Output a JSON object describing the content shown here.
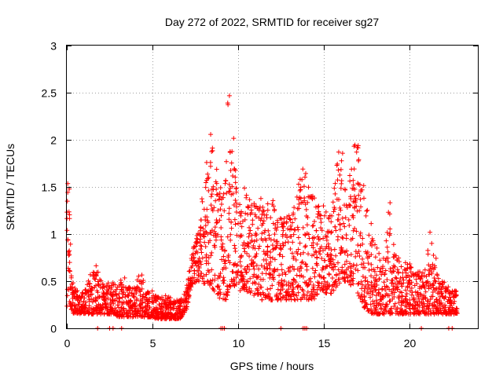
{
  "chart_data": {
    "type": "scatter",
    "title": "Day 272 of 2022, SRMTID for receiver sg27",
    "xlabel": "GPS time / hours",
    "ylabel": "SRMTID / TECUs",
    "xlim": [
      0,
      24
    ],
    "ylim": [
      0,
      3
    ],
    "xticks": [
      0,
      5,
      10,
      15,
      20
    ],
    "xtick_labels": [
      "0",
      "5",
      "10",
      "15",
      "20"
    ],
    "yticks": [
      0,
      0.5,
      1,
      1.5,
      2,
      2.5,
      3
    ],
    "ytick_labels": [
      "0",
      "0.5",
      "1",
      "1.5",
      "2",
      "2.5",
      "3"
    ],
    "grid": true,
    "marker": "+",
    "series": [
      {
        "name": "SRMTID",
        "color": "#ff0000",
        "x": [
          0.0,
          0.05,
          0.1,
          0.15,
          0.2,
          0.25,
          0.3,
          0.4,
          0.5,
          0.6,
          0.7,
          0.8,
          0.9,
          1.0,
          1.2,
          1.4,
          1.6,
          1.8,
          1.9,
          2.0,
          2.2,
          2.4,
          2.6,
          2.8,
          3.0,
          3.2,
          3.4,
          3.6,
          3.8,
          4.0,
          4.2,
          4.4,
          4.6,
          4.8,
          5.0,
          5.2,
          5.4,
          5.6,
          5.8,
          6.0,
          6.2,
          6.4,
          6.6,
          6.8,
          7.0,
          7.2,
          7.4,
          7.6,
          7.8,
          8.0,
          8.2,
          8.4,
          8.6,
          8.8,
          9.0,
          9.2,
          9.3,
          9.4,
          9.5,
          9.6,
          9.8,
          10.0,
          10.2,
          10.4,
          10.6,
          10.8,
          11.0,
          11.2,
          11.4,
          11.6,
          11.8,
          12.0,
          12.2,
          12.4,
          12.6,
          12.8,
          13.0,
          13.2,
          13.4,
          13.6,
          13.8,
          14.0,
          14.2,
          14.4,
          14.6,
          14.8,
          15.0,
          15.2,
          15.4,
          15.6,
          15.8,
          16.0,
          16.2,
          16.4,
          16.6,
          16.8,
          17.0,
          17.2,
          17.4,
          17.6,
          17.8,
          18.0,
          18.2,
          18.4,
          18.6,
          18.8,
          19.0,
          19.2,
          19.4,
          19.6,
          19.8,
          20.0,
          20.2,
          20.4,
          20.6,
          20.8,
          21.0,
          21.2,
          21.4,
          21.6,
          21.8,
          22.0,
          22.2,
          22.4,
          22.6,
          22.8
        ],
        "y_low": [
          0.2,
          0.3,
          0.35,
          0.3,
          0.25,
          0.2,
          0.2,
          0.15,
          0.15,
          0.15,
          0.15,
          0.15,
          0.15,
          0.15,
          0.15,
          0.15,
          0.15,
          0.15,
          0.15,
          0.15,
          0.15,
          0.15,
          0.15,
          0.15,
          0.12,
          0.12,
          0.12,
          0.12,
          0.12,
          0.12,
          0.12,
          0.12,
          0.12,
          0.12,
          0.12,
          0.1,
          0.1,
          0.1,
          0.1,
          0.1,
          0.1,
          0.1,
          0.1,
          0.15,
          0.2,
          0.4,
          0.45,
          0.5,
          0.5,
          0.45,
          0.45,
          0.45,
          0.4,
          0.35,
          0.3,
          0.3,
          0.3,
          0.35,
          0.4,
          0.45,
          0.45,
          0.4,
          0.4,
          0.4,
          0.35,
          0.35,
          0.35,
          0.35,
          0.3,
          0.3,
          0.3,
          0.3,
          0.3,
          0.3,
          0.3,
          0.3,
          0.3,
          0.3,
          0.3,
          0.3,
          0.3,
          0.3,
          0.3,
          0.3,
          0.35,
          0.4,
          0.4,
          0.35,
          0.35,
          0.4,
          0.45,
          0.5,
          0.5,
          0.5,
          0.45,
          0.45,
          0.35,
          0.3,
          0.2,
          0.15,
          0.15,
          0.15,
          0.15,
          0.15,
          0.15,
          0.15,
          0.15,
          0.15,
          0.15,
          0.15,
          0.15,
          0.15,
          0.15,
          0.15,
          0.15,
          0.15,
          0.15,
          0.15,
          0.15,
          0.15,
          0.15,
          0.15,
          0.15,
          0.15,
          0.15,
          0.15
        ],
        "y_high": [
          1.3,
          1.55,
          1.5,
          1.3,
          0.9,
          0.6,
          0.5,
          0.45,
          0.4,
          0.4,
          0.35,
          0.35,
          0.4,
          0.4,
          0.5,
          0.6,
          0.72,
          0.6,
          0.55,
          0.5,
          0.45,
          0.5,
          0.5,
          0.5,
          0.5,
          0.55,
          0.45,
          0.45,
          0.45,
          0.45,
          0.6,
          0.55,
          0.4,
          0.4,
          0.35,
          0.35,
          0.35,
          0.35,
          0.35,
          0.35,
          0.3,
          0.3,
          0.3,
          0.35,
          0.45,
          0.7,
          0.9,
          1.1,
          1.2,
          1.6,
          1.9,
          2.15,
          1.7,
          1.5,
          1.4,
          1.6,
          2.4,
          2.52,
          1.9,
          2.05,
          1.7,
          1.3,
          1.5,
          1.45,
          1.45,
          1.35,
          1.35,
          1.4,
          1.3,
          1.3,
          1.4,
          1.4,
          1.2,
          1.2,
          1.2,
          1.2,
          1.2,
          1.3,
          1.4,
          1.7,
          1.75,
          1.5,
          1.45,
          1.4,
          1.3,
          1.3,
          1.3,
          1.2,
          1.2,
          1.5,
          1.9,
          2.0,
          1.5,
          1.4,
          1.8,
          2.1,
          2.05,
          1.6,
          1.3,
          1.2,
          1.0,
          0.9,
          0.8,
          0.75,
          0.8,
          1.4,
          0.9,
          0.8,
          0.75,
          0.7,
          0.7,
          0.7,
          0.6,
          0.6,
          0.6,
          0.6,
          0.7,
          1.02,
          0.8,
          0.6,
          0.5,
          0.5,
          0.45,
          0.4,
          0.4,
          0.4
        ],
        "zero_points_x": [
          1.8,
          2.5,
          2.7,
          3.2,
          9.0,
          9.1,
          9.2,
          12.5,
          13.8,
          13.9,
          14.0,
          20.7,
          22.3,
          22.5
        ]
      }
    ]
  }
}
